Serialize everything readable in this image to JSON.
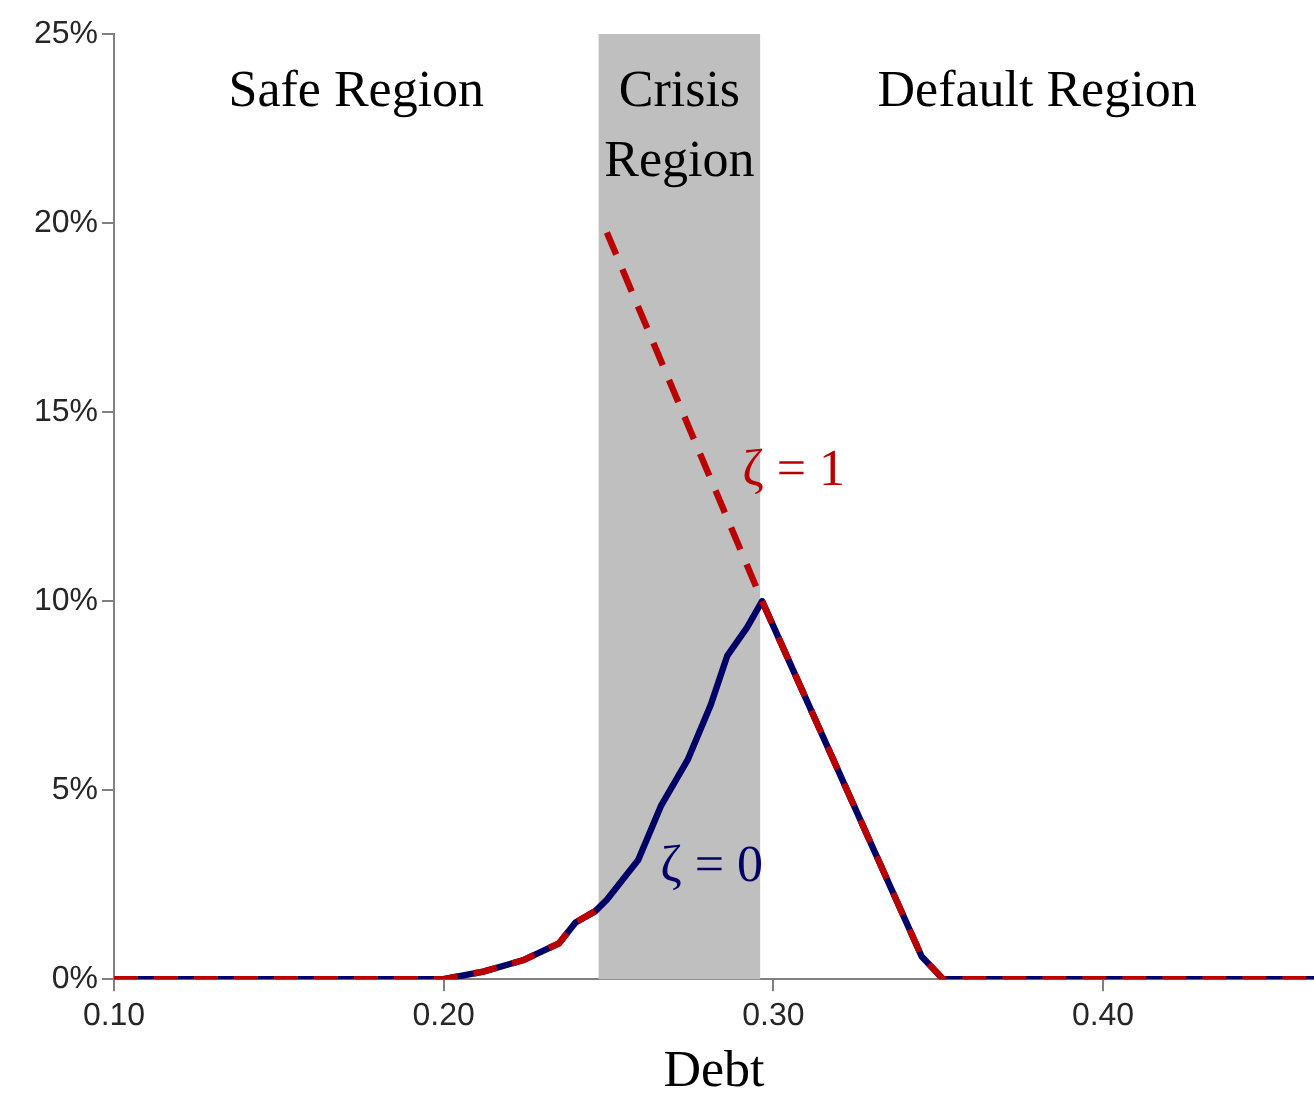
{
  "chart_data": {
    "type": "line",
    "xlabel": "Debt",
    "x": [
      0.1,
      0.2,
      0.212,
      0.224,
      0.235,
      0.24,
      0.246,
      0.2495,
      0.259,
      0.266,
      0.274,
      0.281,
      0.286,
      0.292,
      0.2966,
      0.345,
      0.3515,
      0.464
    ],
    "series": [
      {
        "name": "ζ = 0",
        "color": "#000066",
        "line_style": "solid",
        "values": [
          0,
          0,
          0.2,
          0.5,
          0.95,
          1.5,
          1.8,
          2.1,
          3.15,
          4.6,
          5.8,
          7.25,
          8.55,
          9.3,
          10.0,
          0.6,
          0,
          0
        ]
      },
      {
        "name": "ζ = 1",
        "color": "#bb0000",
        "line_style": "dashed",
        "x": [
          0.1,
          0.2,
          0.212,
          0.224,
          0.235,
          0.24,
          0.246,
          0.248,
          0.2495,
          0.2966,
          0.345,
          0.3515,
          0.464
        ],
        "values": [
          0,
          0,
          0.2,
          0.5,
          0.95,
          1.5,
          1.8,
          null,
          19.75,
          10.0,
          0.6,
          0,
          0
        ]
      }
    ],
    "xlim": [
      0.1,
      0.464
    ],
    "xticks": [
      {
        "value": 0.1,
        "label": "0.10"
      },
      {
        "value": 0.2,
        "label": "0.20"
      },
      {
        "value": 0.3,
        "label": "0.30"
      },
      {
        "value": 0.4,
        "label": "0.40"
      }
    ],
    "ylim": [
      0,
      25
    ],
    "yticks": [
      {
        "value": 0,
        "label": "0%"
      },
      {
        "value": 5,
        "label": "5%"
      },
      {
        "value": 10,
        "label": "10%"
      },
      {
        "value": 15,
        "label": "15%"
      },
      {
        "value": 20,
        "label": "20%"
      },
      {
        "value": 25,
        "label": "25%"
      }
    ],
    "bands": [
      {
        "axis": "x",
        "from": 0.247,
        "to": 0.296,
        "label": "Crisis Region",
        "color": "#bfbfbf"
      }
    ],
    "annotations": [
      "Safe Region",
      "Default Region"
    ],
    "grid": false,
    "legend": false,
    "marker": "none"
  }
}
